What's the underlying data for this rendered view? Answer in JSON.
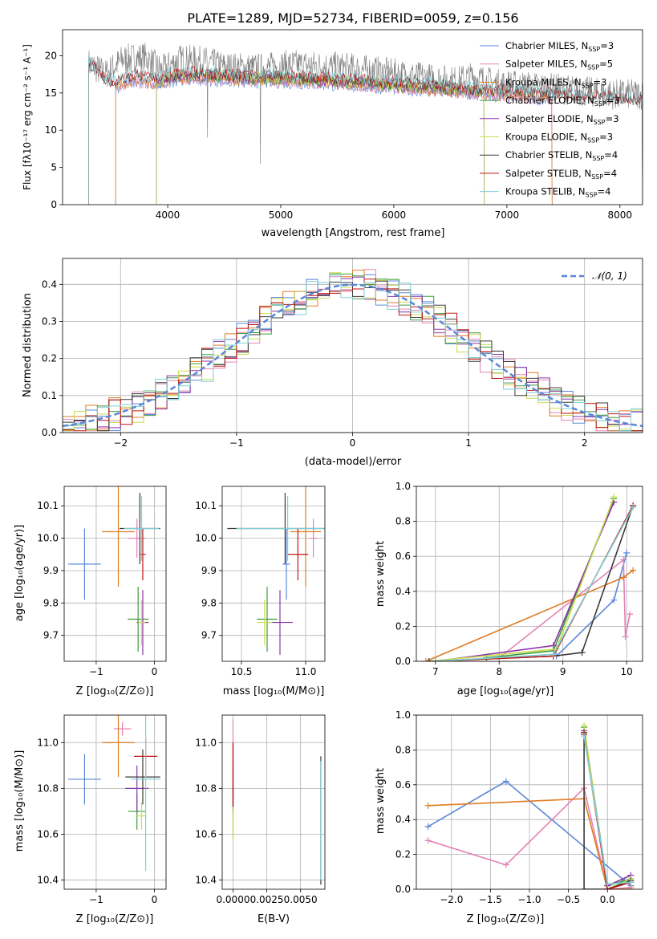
{
  "colors": {
    "chab_miles": "#5b87d8",
    "salp_miles": "#e482b5",
    "krou_miles": "#e07b22",
    "chab_elodie": "#3c9a3c",
    "salp_elodie": "#8c35a8",
    "krou_elodie": "#c8dc50",
    "chab_stelib": "#3a3a3a",
    "salp_stelib": "#c21515",
    "krou_stelib": "#7ecfd8",
    "data_gray": "#7f7f7f",
    "normal_dashed": "#5b87d8"
  },
  "chart_data": [
    {
      "id": "spectrum",
      "type": "line",
      "title": "PLATE=1289, MJD=52734, FIBERID=0059, z=0.156",
      "xlabel": "wavelength [Angstrom, rest frame]",
      "ylabel": "Flux [fλ10⁻¹⁷ erg cm⁻² s⁻¹ A⁻¹]",
      "xlim": [
        3070,
        8200
      ],
      "ylim": [
        0,
        23.5
      ],
      "xticks": [
        4000,
        5000,
        6000,
        7000,
        8000
      ],
      "yticks": [
        0,
        5,
        10,
        15,
        20
      ],
      "grid": false,
      "legend_position": "top-right",
      "legend": [
        "Chabrier MILES, N_SSP=3",
        "Salpeter MILES, N_SSP=5",
        "Kroupa MILES, N_SSP=3",
        "Chabrier ELODIE, N_SSP=3",
        "Salpeter ELODIE, N_SSP=3",
        "Kroupa ELODIE, N_SSP=3",
        "Chabrier STELIB, N_SSP=4",
        "Salpeter STELIB, N_SSP=4",
        "Kroupa STELIB, N_SSP=4"
      ],
      "data_continuum": {
        "x": [
          3300,
          3450,
          3600,
          3800,
          3950,
          4100,
          4300,
          4500,
          4800,
          5100,
          5400,
          5700,
          6000,
          6300,
          6560,
          6700,
          6900,
          7200,
          7500,
          7800,
          8000
        ],
        "y": [
          19.0,
          17.5,
          19.5,
          19.8,
          18.0,
          19.5,
          19.3,
          18.5,
          18.3,
          18.8,
          18.6,
          18.2,
          17.6,
          17.0,
          16.6,
          17.2,
          16.2,
          15.9,
          15.5,
          15.0,
          14.8
        ]
      },
      "model_continuum": {
        "x": [
          3300,
          3500,
          3700,
          3900,
          4100,
          4300,
          4600,
          4900,
          5200,
          5500,
          5800,
          6100,
          6400,
          6700,
          7000,
          7300,
          7600,
          7900,
          8100
        ],
        "y": [
          18.7,
          16.0,
          17.0,
          16.5,
          17.4,
          17.3,
          17.0,
          17.0,
          16.8,
          16.6,
          16.3,
          16.0,
          15.7,
          15.2,
          15.0,
          14.7,
          14.3,
          14.0,
          13.8
        ]
      },
      "model_cutoffs": [
        {
          "series": "Chabrier MILES, N_SSP=3",
          "start": 3540,
          "end": 7400
        },
        {
          "series": "Salpeter MILES, N_SSP=5",
          "start": 3540,
          "end": 7400
        },
        {
          "series": "Kroupa MILES, N_SSP=3",
          "start": 3540,
          "end": 7400
        },
        {
          "series": "Chabrier ELODIE, N_SSP=3",
          "start": 3900,
          "end": 6800
        },
        {
          "series": "Salpeter ELODIE, N_SSP=3",
          "start": 3900,
          "end": 6800
        },
        {
          "series": "Kroupa ELODIE, N_SSP=3",
          "start": 3900,
          "end": 6800
        },
        {
          "series": "Chabrier STELIB, N_SSP=4",
          "start": 3300,
          "end": 8200
        },
        {
          "series": "Salpeter STELIB, N_SSP=4",
          "start": 3300,
          "end": 8200
        },
        {
          "series": "Kroupa STELIB, N_SSP=4",
          "start": 3300,
          "end": 8200
        }
      ]
    },
    {
      "id": "residuals",
      "type": "line",
      "xlabel": "(data-model)/error",
      "ylabel": "Normed distribution",
      "xlim": [
        -2.5,
        2.5
      ],
      "ylim": [
        0,
        0.47
      ],
      "xticks": [
        -2,
        -1,
        0,
        1,
        2
      ],
      "yticks": [
        0.0,
        0.1,
        0.2,
        0.3,
        0.4
      ],
      "grid": true,
      "legend_position": "top-right",
      "legend": [
        "𝒩(0, 1)"
      ],
      "bin_edges_start": -2.5,
      "bin_width": 0.1
    },
    {
      "id": "age-vs-z",
      "type": "scatter",
      "xlabel": "Z [log₁₀(Z/Z⊙)]",
      "ylabel": "age  [log₁₀(age/yr)]",
      "xlim": [
        -1.55,
        0.2
      ],
      "ylim": [
        9.62,
        10.16
      ],
      "xticks": [
        -1,
        0
      ],
      "yticks": [
        9.7,
        9.8,
        9.9,
        10.0,
        10.1
      ],
      "grid": true,
      "points": [
        {
          "x": -1.2,
          "y": 9.92,
          "xerr": 0.28,
          "yerr": 0.11
        },
        {
          "x": -0.3,
          "y": 10.0,
          "xerr": 0.15,
          "yerr": 0.06
        },
        {
          "x": -0.62,
          "y": 10.02,
          "xerr": 0.28,
          "yerr": 0.17
        },
        {
          "x": -0.28,
          "y": 9.75,
          "xerr": 0.18,
          "yerr": 0.1
        },
        {
          "x": -0.2,
          "y": 9.74,
          "xerr": 0.1,
          "yerr": 0.1
        },
        {
          "x": -0.22,
          "y": 9.74,
          "xerr": 0.06,
          "yerr": 0.07
        },
        {
          "x": -0.25,
          "y": 10.03,
          "xerr": 0.35,
          "yerr": 0.11
        },
        {
          "x": -0.2,
          "y": 9.95,
          "xerr": 0.05,
          "yerr": 0.08
        },
        {
          "x": -0.22,
          "y": 10.03,
          "xerr": 0.3,
          "yerr": 0.1
        }
      ]
    },
    {
      "id": "age-vs-mass",
      "type": "scatter",
      "xlabel": "mass [log₁₀(M/M⊙)]",
      "ylabel": "",
      "xlim": [
        10.35,
        11.15
      ],
      "ylim": [
        9.62,
        10.16
      ],
      "xticks": [
        10.5,
        11.0
      ],
      "yticks": [
        9.7,
        9.8,
        9.9,
        10.0,
        10.1
      ],
      "grid": true,
      "points": [
        {
          "x": 10.85,
          "y": 9.92,
          "xerr": 0.03,
          "yerr": 0.11
        },
        {
          "x": 11.06,
          "y": 10.0,
          "xerr": 0.03,
          "yerr": 0.06
        },
        {
          "x": 11.0,
          "y": 10.02,
          "xerr": 0.12,
          "yerr": 0.17
        },
        {
          "x": 10.7,
          "y": 9.75,
          "xerr": 0.08,
          "yerr": 0.1
        },
        {
          "x": 10.8,
          "y": 9.74,
          "xerr": 0.1,
          "yerr": 0.1
        },
        {
          "x": 10.68,
          "y": 9.74,
          "xerr": 0.06,
          "yerr": 0.07
        },
        {
          "x": 10.84,
          "y": 10.03,
          "xerr": 0.45,
          "yerr": 0.11
        },
        {
          "x": 10.94,
          "y": 9.95,
          "xerr": 0.08,
          "yerr": 0.08
        },
        {
          "x": 10.86,
          "y": 10.03,
          "xerr": 0.4,
          "yerr": 0.1
        }
      ]
    },
    {
      "id": "weight-vs-age",
      "type": "line",
      "xlabel": "age  [log₁₀(age/yr)]",
      "ylabel": "mass weight",
      "xlim": [
        6.7,
        10.25
      ],
      "ylim": [
        0,
        1.0
      ],
      "xticks": [
        7,
        8,
        9,
        10
      ],
      "yticks": [
        0.0,
        0.2,
        0.4,
        0.6,
        0.8,
        1.0
      ],
      "grid": true,
      "series": [
        {
          "name": "Chabrier MILES, N_SSP=3",
          "x": [
            8.9,
            9.8,
            10.0
          ],
          "y": [
            0.03,
            0.35,
            0.62
          ]
        },
        {
          "name": "Salpeter MILES, N_SSP=5",
          "x": [
            6.9,
            8.0,
            9.95,
            9.98,
            10.05
          ],
          "y": [
            0.0,
            0.02,
            0.58,
            0.14,
            0.27
          ]
        },
        {
          "name": "Kroupa MILES, N_SSP=3",
          "x": [
            6.85,
            9.95,
            10.1
          ],
          "y": [
            0.0,
            0.48,
            0.52
          ]
        },
        {
          "name": "Chabrier ELODIE, N_SSP=3",
          "x": [
            7.8,
            8.85,
            9.8
          ],
          "y": [
            0.02,
            0.06,
            0.93
          ]
        },
        {
          "name": "Salpeter ELODIE, N_SSP=3",
          "x": [
            7.0,
            8.85,
            9.8
          ],
          "y": [
            0.0,
            0.09,
            0.91
          ]
        },
        {
          "name": "Kroupa ELODIE, N_SSP=3",
          "x": [
            6.9,
            8.9,
            9.8
          ],
          "y": [
            0.0,
            0.07,
            0.94
          ]
        },
        {
          "name": "Chabrier STELIB, N_SSP=4",
          "x": [
            6.9,
            8.85,
            9.3,
            10.1
          ],
          "y": [
            0.0,
            0.03,
            0.05,
            0.89
          ]
        },
        {
          "name": "Salpeter STELIB, N_SSP=4",
          "x": [
            7.0,
            8.85,
            10.1
          ],
          "y": [
            0.0,
            0.03,
            0.89
          ]
        },
        {
          "name": "Kroupa STELIB, N_SSP=4",
          "x": [
            7.0,
            8.85,
            10.1
          ],
          "y": [
            0.0,
            0.04,
            0.88
          ]
        }
      ]
    },
    {
      "id": "mass-vs-z",
      "type": "scatter",
      "xlabel": "Z [log₁₀(Z/Z⊙)]",
      "ylabel": "mass [log₁₀(M/M⊙)]",
      "xlim": [
        -1.55,
        0.2
      ],
      "ylim": [
        10.36,
        11.12
      ],
      "xticks": [
        -1,
        0
      ],
      "yticks": [
        10.4,
        10.6,
        10.8,
        11.0
      ],
      "grid": true,
      "points": [
        {
          "x": -1.2,
          "y": 10.84,
          "xerr": 0.28,
          "yerr": 0.11
        },
        {
          "x": -0.55,
          "y": 11.06,
          "xerr": 0.15,
          "yerr": 0.03
        },
        {
          "x": -0.62,
          "y": 11.0,
          "xerr": 0.28,
          "yerr": 0.15
        },
        {
          "x": -0.3,
          "y": 10.7,
          "xerr": 0.15,
          "yerr": 0.08
        },
        {
          "x": -0.3,
          "y": 10.8,
          "xerr": 0.2,
          "yerr": 0.1
        },
        {
          "x": -0.22,
          "y": 10.68,
          "xerr": 0.08,
          "yerr": 0.06
        },
        {
          "x": -0.2,
          "y": 10.85,
          "xerr": 0.3,
          "yerr": 0.12
        },
        {
          "x": -0.15,
          "y": 10.94,
          "xerr": 0.2,
          "yerr": 0.08
        },
        {
          "x": -0.15,
          "y": 10.84,
          "xerr": 0.25,
          "yerr": 0.4
        }
      ]
    },
    {
      "id": "mass-vs-ebv",
      "type": "scatter",
      "xlabel": "E(B-V)",
      "ylabel": "",
      "xlim": [
        -0.0008,
        0.0068
      ],
      "ylim": [
        10.36,
        11.12
      ],
      "xticks": [
        0.0,
        0.0025,
        0.005
      ],
      "xticklabels": [
        "0.0000",
        "0.0025",
        "0.0050"
      ],
      "yticks": [
        10.4,
        10.6,
        10.8,
        11.0
      ],
      "grid": true,
      "points": [
        {
          "x": 0.0,
          "y": 10.84,
          "xerr": 0,
          "yerr": 0.15
        },
        {
          "x": 0.0,
          "y": 11.0,
          "xerr": 0,
          "yerr": 0.1
        },
        {
          "x": 0.0,
          "y": 10.86,
          "xerr": 0,
          "yerr": 0.14
        },
        {
          "x": 0.0,
          "y": 10.7,
          "xerr": 0,
          "yerr": 0.12
        },
        {
          "x": 0.0,
          "y": 10.8,
          "xerr": 0,
          "yerr": 0.1
        },
        {
          "x": 0.0,
          "y": 10.68,
          "xerr": 0,
          "yerr": 0.1
        },
        {
          "x": 0.0065,
          "y": 10.66,
          "xerr": 0,
          "yerr": 0.28
        },
        {
          "x": 0.0,
          "y": 10.86,
          "xerr": 0,
          "yerr": 0.14
        },
        {
          "x": 0.0065,
          "y": 10.66,
          "xerr": 0,
          "yerr": 0.26
        }
      ]
    },
    {
      "id": "weight-vs-z",
      "type": "line",
      "xlabel": "Z [log₁₀(Z/Z⊙)]",
      "ylabel": "mass weight",
      "xlim": [
        -2.45,
        0.45
      ],
      "ylim": [
        0,
        1.0
      ],
      "xticks": [
        -2.0,
        -1.5,
        -1.0,
        -0.5,
        0.0
      ],
      "yticks": [
        0.0,
        0.2,
        0.4,
        0.6,
        0.8,
        1.0
      ],
      "grid": true,
      "series": [
        {
          "name": "Chabrier MILES, N_SSP=3",
          "x": [
            -2.3,
            -1.3,
            0.22,
            0.3
          ],
          "y": [
            0.36,
            0.62,
            0.05,
            0.02
          ]
        },
        {
          "name": "Salpeter MILES, N_SSP=5",
          "x": [
            -2.3,
            -1.3,
            -0.3,
            0.0,
            0.3
          ],
          "y": [
            0.28,
            0.14,
            0.58,
            0.0,
            0.01
          ]
        },
        {
          "name": "Kroupa MILES, N_SSP=3",
          "x": [
            -2.3,
            -0.3,
            0.0,
            0.3
          ],
          "y": [
            0.48,
            0.52,
            0.0,
            0.0
          ]
        },
        {
          "name": "Chabrier ELODIE, N_SSP=3",
          "x": [
            -0.3,
            0.0,
            0.3
          ],
          "y": [
            0.93,
            0.02,
            0.06
          ]
        },
        {
          "name": "Salpeter ELODIE, N_SSP=3",
          "x": [
            -0.3,
            0.0,
            0.3
          ],
          "y": [
            0.91,
            0.02,
            0.08
          ]
        },
        {
          "name": "Kroupa ELODIE, N_SSP=3",
          "x": [
            -0.3,
            0.0,
            0.3
          ],
          "y": [
            0.94,
            0.0,
            0.06
          ]
        },
        {
          "name": "Chabrier STELIB, N_SSP=4",
          "x": [
            -0.3,
            -0.3,
            0.0,
            0.3
          ],
          "y": [
            0.9,
            0.0,
            0.0,
            0.05
          ]
        },
        {
          "name": "Salpeter STELIB, N_SSP=4",
          "x": [
            -0.3,
            0.0,
            0.3
          ],
          "y": [
            0.89,
            0.0,
            0.04
          ]
        },
        {
          "name": "Kroupa STELIB, N_SSP=4",
          "x": [
            -0.3,
            0.0,
            0.3
          ],
          "y": [
            0.88,
            0.03,
            0.04
          ]
        }
      ]
    }
  ],
  "residual_normal_label": "𝒩(0, 1)"
}
